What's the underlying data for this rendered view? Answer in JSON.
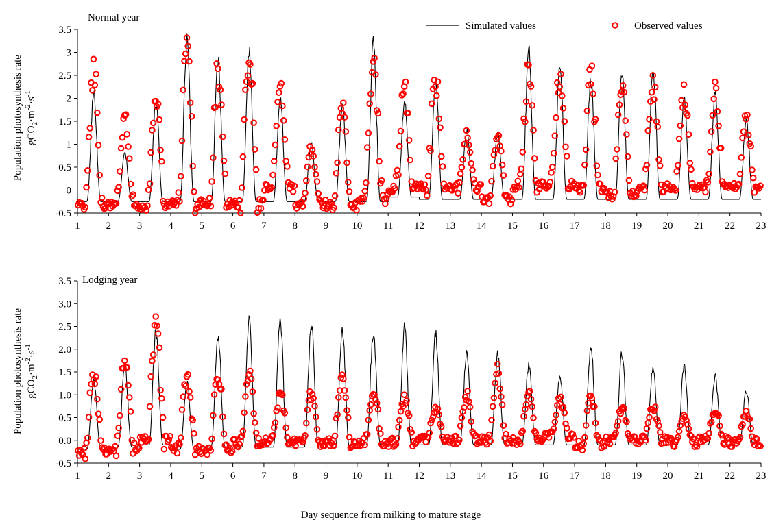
{
  "figure": {
    "xlabel": "Day sequence from milking to mature stage",
    "ylabel_line1": "Population photosynthesis rate",
    "ylabel_line2_prefix": "gCO",
    "ylabel_line2_sub": "2",
    "ylabel_line2_mid": "·m",
    "ylabel_line2_sup1": "-2",
    "ylabel_line2_mid2": "·s",
    "ylabel_line2_sup2": "-1"
  },
  "legend": {
    "simulated": "Simulated values",
    "observed": "Observed values"
  },
  "colors": {
    "simulated": "#000000",
    "observed": "#ff0000",
    "axis": "#000000"
  },
  "chart_data": [
    {
      "type": "line",
      "title": "Normal year",
      "x": [
        "1",
        "2",
        "3",
        "4",
        "5",
        "6",
        "7",
        "8",
        "9",
        "10",
        "11",
        "12",
        "13",
        "14",
        "15",
        "16",
        "17",
        "18",
        "19",
        "20",
        "21",
        "22",
        "23"
      ],
      "xlim": [
        1,
        23
      ],
      "ylim": [
        -0.5,
        3.5
      ],
      "yticks": [
        "-0.5",
        "0",
        "0.5",
        "1",
        "1.5",
        "2",
        "2.5",
        "3",
        "3.5"
      ],
      "legend_position": "top-right",
      "grid": false,
      "series": [
        {
          "name": "Simulated values",
          "style": "line",
          "daily_peaks": [
            2.1,
            0.8,
            1.9,
            3.25,
            2.85,
            3.0,
            2.0,
            1.0,
            1.8,
            3.25,
            1.9,
            2.35,
            1.3,
            1.25,
            3.05,
            2.75,
            2.4,
            2.6,
            2.65,
            2.0,
            2.1,
            1.5
          ],
          "night_base": [
            -0.25,
            -0.25,
            -0.25,
            -0.25,
            -0.25,
            -0.25,
            -0.25,
            -0.25,
            -0.25,
            -0.25,
            -0.15,
            -0.2,
            -0.2,
            -0.2,
            -0.2,
            -0.2,
            -0.2,
            -0.2,
            -0.2,
            -0.2,
            -0.2,
            -0.2
          ]
        },
        {
          "name": "Observed values",
          "style": "open-circle",
          "daily_peaks": [
            2.65,
            1.55,
            2.0,
            3.0,
            2.6,
            2.95,
            2.2,
            0.9,
            1.9,
            2.95,
            2.2,
            2.4,
            1.2,
            1.1,
            2.6,
            2.55,
            2.5,
            2.2,
            2.3,
            2.15,
            2.1,
            1.55
          ],
          "night_base": [
            -0.35,
            -0.3,
            -0.35,
            -0.3,
            -0.3,
            -0.3,
            0.05,
            -0.3,
            -0.35,
            -0.2,
            0.05,
            0.05,
            0.05,
            -0.2,
            0.1,
            0.1,
            0.05,
            -0.1,
            0.05,
            0.05,
            0.05,
            0.05
          ]
        }
      ]
    },
    {
      "type": "line",
      "title": "Lodging year",
      "x": [
        "1",
        "2",
        "3",
        "4",
        "5",
        "6",
        "7",
        "8",
        "9",
        "10",
        "11",
        "12",
        "13",
        "14",
        "15",
        "16",
        "17",
        "18",
        "19",
        "20",
        "21",
        "22",
        "23"
      ],
      "xlim": [
        1,
        23
      ],
      "ylim": [
        -0.5,
        3.5
      ],
      "yticks": [
        "-0.5",
        "0.0",
        "0.5",
        "1.0",
        "1.5",
        "2.0",
        "2.5",
        "3.0",
        "3.5"
      ],
      "grid": false,
      "series": [
        {
          "name": "Simulated values",
          "style": "line",
          "daily_peaks": [
            1.3,
            1.6,
            2.4,
            1.3,
            2.3,
            2.6,
            2.6,
            2.55,
            2.45,
            2.4,
            2.45,
            2.35,
            1.9,
            1.9,
            1.65,
            1.4,
            2.05,
            1.9,
            1.6,
            1.6,
            1.4,
            1.1
          ],
          "night_base": [
            -0.2,
            -0.15,
            -0.1,
            -0.2,
            -0.15,
            -0.15,
            -0.15,
            -0.15,
            -0.15,
            -0.1,
            -0.1,
            -0.1,
            -0.1,
            -0.1,
            -0.1,
            -0.1,
            -0.1,
            -0.1,
            -0.1,
            -0.1,
            -0.1,
            -0.1
          ]
        },
        {
          "name": "Observed values",
          "style": "open-circle",
          "daily_peaks": [
            1.45,
            1.7,
            2.45,
            1.4,
            1.45,
            1.45,
            1.0,
            1.0,
            1.45,
            1.1,
            0.9,
            0.7,
            1.0,
            1.5,
            1.0,
            0.9,
            0.95,
            0.7,
            0.75,
            0.55,
            0.65,
            0.6
          ],
          "night_base": [
            -0.25,
            -0.15,
            0.0,
            -0.2,
            -0.25,
            -0.05,
            0.0,
            -0.05,
            -0.05,
            -0.05,
            -0.05,
            0.0,
            0.0,
            0.0,
            0.0,
            0.1,
            -0.1,
            0.0,
            0.0,
            -0.05,
            0.0,
            -0.05
          ]
        }
      ]
    }
  ]
}
